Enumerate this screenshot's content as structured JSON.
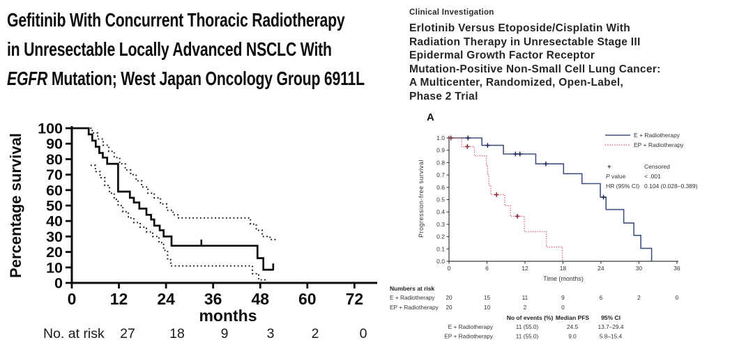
{
  "left_panel": {
    "title": {
      "line1": "Gefitinib With Concurrent Thoracic Radiotherapy",
      "line2": "in Unresectable Locally Advanced NSCLC With",
      "line3_italic": "EGFR",
      "line3_rest": " Mutation; West Japan Oncology Group 6911L"
    }
  },
  "right_panel": {
    "eyebrow": "Clinical Investigation",
    "title_lines": [
      "Erlotinib Versus Etoposide/Cisplatin With",
      "Radiation Therapy in Unresectable Stage III",
      "Epidermal Growth Factor Receptor",
      "Mutation-Positive Non-Small Cell Lung Cancer:",
      "A Multicenter, Randomized, Open-Label,",
      "Phase 2 Trial"
    ]
  },
  "chart_data": [
    {
      "type": "line",
      "subtype": "kaplan-meier",
      "title": "",
      "xlabel": "months",
      "ylabel": "Percentage survival",
      "xlim": [
        0,
        78
      ],
      "ylim": [
        0,
        100
      ],
      "xticks": [
        0,
        12,
        24,
        36,
        48,
        60,
        72
      ],
      "yticks": [
        0,
        10,
        20,
        30,
        40,
        50,
        60,
        70,
        80,
        90,
        100
      ],
      "grid": false,
      "colors": {
        "line": "#0d0d0d"
      },
      "series": [
        {
          "name": "overall-survival",
          "style": "solid",
          "steps": [
            [
              0,
              100
            ],
            [
              4.3,
              100
            ],
            [
              4.3,
              96
            ],
            [
              5.2,
              96
            ],
            [
              5.2,
              92
            ],
            [
              6.1,
              92
            ],
            [
              6.1,
              88
            ],
            [
              7.0,
              88
            ],
            [
              7.0,
              84
            ],
            [
              7.9,
              84
            ],
            [
              7.9,
              81
            ],
            [
              9.0,
              81
            ],
            [
              9.0,
              77
            ],
            [
              11.8,
              77
            ],
            [
              11.8,
              59
            ],
            [
              14.8,
              59
            ],
            [
              14.8,
              55
            ],
            [
              15.8,
              55
            ],
            [
              15.8,
              52
            ],
            [
              17.2,
              52
            ],
            [
              17.2,
              48
            ],
            [
              19.0,
              48
            ],
            [
              19.0,
              44
            ],
            [
              20.2,
              44
            ],
            [
              20.2,
              41
            ],
            [
              21.0,
              41
            ],
            [
              21.0,
              37
            ],
            [
              22.4,
              37
            ],
            [
              22.4,
              34
            ],
            [
              23.4,
              34
            ],
            [
              23.4,
              30
            ],
            [
              25.4,
              30
            ],
            [
              25.4,
              24
            ],
            [
              47.3,
              24
            ],
            [
              47.3,
              16
            ],
            [
              48.8,
              16
            ],
            [
              48.8,
              8.5
            ],
            [
              51.3,
              8.5
            ]
          ],
          "censors": [
            [
              33,
              24
            ],
            [
              51.3,
              8.5
            ]
          ]
        },
        {
          "name": "upper-95ci",
          "style": "dotted",
          "steps": [
            [
              0,
              100
            ],
            [
              5.2,
              100
            ],
            [
              5.2,
              97
            ],
            [
              6.6,
              97
            ],
            [
              6.6,
              93
            ],
            [
              8.0,
              93
            ],
            [
              8.0,
              89
            ],
            [
              9.4,
              89
            ],
            [
              9.4,
              85
            ],
            [
              10.8,
              85
            ],
            [
              10.8,
              81
            ],
            [
              12.2,
              81
            ],
            [
              12.2,
              77
            ],
            [
              13.6,
              77
            ],
            [
              13.6,
              73
            ],
            [
              15.0,
              73
            ],
            [
              15.0,
              70
            ],
            [
              16.4,
              70
            ],
            [
              16.4,
              66
            ],
            [
              17.8,
              66
            ],
            [
              17.8,
              62
            ],
            [
              19.4,
              62
            ],
            [
              19.4,
              58
            ],
            [
              21.0,
              58
            ],
            [
              21.0,
              55
            ],
            [
              22.6,
              55
            ],
            [
              22.6,
              51
            ],
            [
              24.2,
              51
            ],
            [
              24.2,
              47
            ],
            [
              25.8,
              47
            ],
            [
              25.8,
              44
            ],
            [
              27.2,
              44
            ],
            [
              27.2,
              42
            ],
            [
              45.5,
              42
            ],
            [
              45.5,
              38
            ],
            [
              47.0,
              38
            ],
            [
              47.0,
              34
            ],
            [
              48.5,
              34
            ],
            [
              48.5,
              30
            ],
            [
              50.5,
              30
            ],
            [
              50.5,
              28
            ],
            [
              52.5,
              28
            ]
          ],
          "censors": []
        },
        {
          "name": "lower-95ci",
          "style": "dotted",
          "steps": [
            [
              4.8,
              76
            ],
            [
              6.0,
              76
            ],
            [
              6.0,
              72
            ],
            [
              7.2,
              72
            ],
            [
              7.2,
              68
            ],
            [
              8.4,
              68
            ],
            [
              8.4,
              63
            ],
            [
              9.6,
              63
            ],
            [
              9.6,
              58
            ],
            [
              10.8,
              58
            ],
            [
              10.8,
              54
            ],
            [
              11.8,
              54
            ],
            [
              11.8,
              50
            ],
            [
              13.0,
              50
            ],
            [
              13.0,
              46
            ],
            [
              14.4,
              46
            ],
            [
              14.4,
              42
            ],
            [
              15.8,
              42
            ],
            [
              15.8,
              39
            ],
            [
              17.4,
              39
            ],
            [
              17.4,
              36
            ],
            [
              19.0,
              36
            ],
            [
              19.0,
              33
            ],
            [
              20.6,
              33
            ],
            [
              20.6,
              30
            ],
            [
              22.2,
              30
            ],
            [
              22.2,
              26
            ],
            [
              23.4,
              26
            ],
            [
              23.4,
              21
            ],
            [
              24.4,
              21
            ],
            [
              24.4,
              15
            ],
            [
              25.2,
              15
            ],
            [
              25.2,
              11
            ],
            [
              46.0,
              11
            ],
            [
              46.0,
              6
            ],
            [
              47.6,
              6
            ],
            [
              47.6,
              2
            ],
            [
              49.2,
              2
            ],
            [
              49.2,
              0
            ],
            [
              50.5,
              0
            ]
          ],
          "censors": []
        }
      ],
      "risk_table": {
        "label": "No. at risk",
        "values": [
          "27",
          "18",
          "9",
          "3",
          "2",
          "0"
        ]
      }
    },
    {
      "type": "line",
      "subtype": "kaplan-meier",
      "panel_label": "A",
      "xlabel": "Time (months)",
      "ylabel": "Progression-free survival",
      "xlim": [
        0,
        36
      ],
      "ylim": [
        0.0,
        1.0
      ],
      "xticks": [
        0,
        6,
        12,
        18,
        24,
        30,
        36
      ],
      "yticks": [
        0.0,
        0.1,
        0.2,
        0.3,
        0.4,
        0.5,
        0.6,
        0.7,
        0.8,
        0.9,
        1.0
      ],
      "grid": false,
      "legend_position": "top-right",
      "series": [
        {
          "name": "E + Radiotherapy",
          "style": "solid",
          "color": "#42517f",
          "censor_color": "#1d2a5a",
          "steps": [
            [
              0,
              1.0
            ],
            [
              5.2,
              1.0
            ],
            [
              5.2,
              0.94
            ],
            [
              8.6,
              0.94
            ],
            [
              8.6,
              0.87
            ],
            [
              13.7,
              0.87
            ],
            [
              13.7,
              0.79
            ],
            [
              18.1,
              0.79
            ],
            [
              18.1,
              0.71
            ],
            [
              21.0,
              0.71
            ],
            [
              21.0,
              0.63
            ],
            [
              23.9,
              0.63
            ],
            [
              23.9,
              0.52
            ],
            [
              24.8,
              0.52
            ],
            [
              24.8,
              0.42
            ],
            [
              27.6,
              0.42
            ],
            [
              27.6,
              0.31
            ],
            [
              29.2,
              0.31
            ],
            [
              29.2,
              0.21
            ],
            [
              30.3,
              0.21
            ],
            [
              30.3,
              0.105
            ],
            [
              32.0,
              0.105
            ],
            [
              32.0,
              0.0
            ]
          ],
          "censors": [
            [
              3.0,
              1.0
            ],
            [
              6.1,
              0.94
            ],
            [
              10.5,
              0.87
            ],
            [
              11.2,
              0.87
            ],
            [
              15.3,
              0.79
            ],
            [
              24.4,
              0.52
            ]
          ]
        },
        {
          "name": "EP + Radiotherapy",
          "style": "dotted",
          "color": "#d05a70",
          "censor_color": "#8e2136",
          "steps": [
            [
              0,
              1.0
            ],
            [
              2.0,
              1.0
            ],
            [
              2.0,
              0.93
            ],
            [
              4.0,
              0.93
            ],
            [
              4.0,
              0.855
            ],
            [
              5.9,
              0.855
            ],
            [
              5.9,
              0.78
            ],
            [
              6.1,
              0.78
            ],
            [
              6.1,
              0.7
            ],
            [
              6.3,
              0.7
            ],
            [
              6.3,
              0.615
            ],
            [
              6.6,
              0.615
            ],
            [
              6.6,
              0.54
            ],
            [
              8.8,
              0.54
            ],
            [
              8.8,
              0.45
            ],
            [
              9.7,
              0.45
            ],
            [
              9.7,
              0.365
            ],
            [
              11.9,
              0.365
            ],
            [
              11.9,
              0.24
            ],
            [
              15.4,
              0.24
            ],
            [
              15.4,
              0.115
            ],
            [
              17.9,
              0.115
            ],
            [
              17.9,
              0.0
            ]
          ],
          "censors": [
            [
              0.3,
              1.0
            ],
            [
              2.9,
              0.93
            ],
            [
              7.5,
              0.54
            ],
            [
              10.8,
              0.365
            ]
          ]
        }
      ],
      "annotations": {
        "censored_symbol": "+",
        "censored_label": "Censored",
        "p_value_label": "P value",
        "p_value": "< .001",
        "hr_label": "HR (95% CI)",
        "hr_value": "0.104 (0.028–0.389)"
      },
      "risk_table": {
        "header": "Numbers at risk",
        "rows": [
          {
            "name": "E + Radiotherapy",
            "values": [
              "20",
              "15",
              "11",
              "9",
              "6",
              "2",
              "0"
            ]
          },
          {
            "name": "EP + Radiotherapy",
            "values": [
              "20",
              "10",
              "2",
              "0"
            ]
          }
        ]
      },
      "stats_table": {
        "columns": [
          "No of events (%)",
          "Median PFS",
          "95% CI"
        ],
        "rows": [
          {
            "name": "E + Radiotherapy",
            "values": [
              "11 (55.0)",
              "24.5",
              "13.7–29.4"
            ]
          },
          {
            "name": "EP + Radiotherapy",
            "values": [
              "11 (55.0)",
              "9.0",
              "5.8–15.4"
            ]
          }
        ]
      }
    }
  ]
}
